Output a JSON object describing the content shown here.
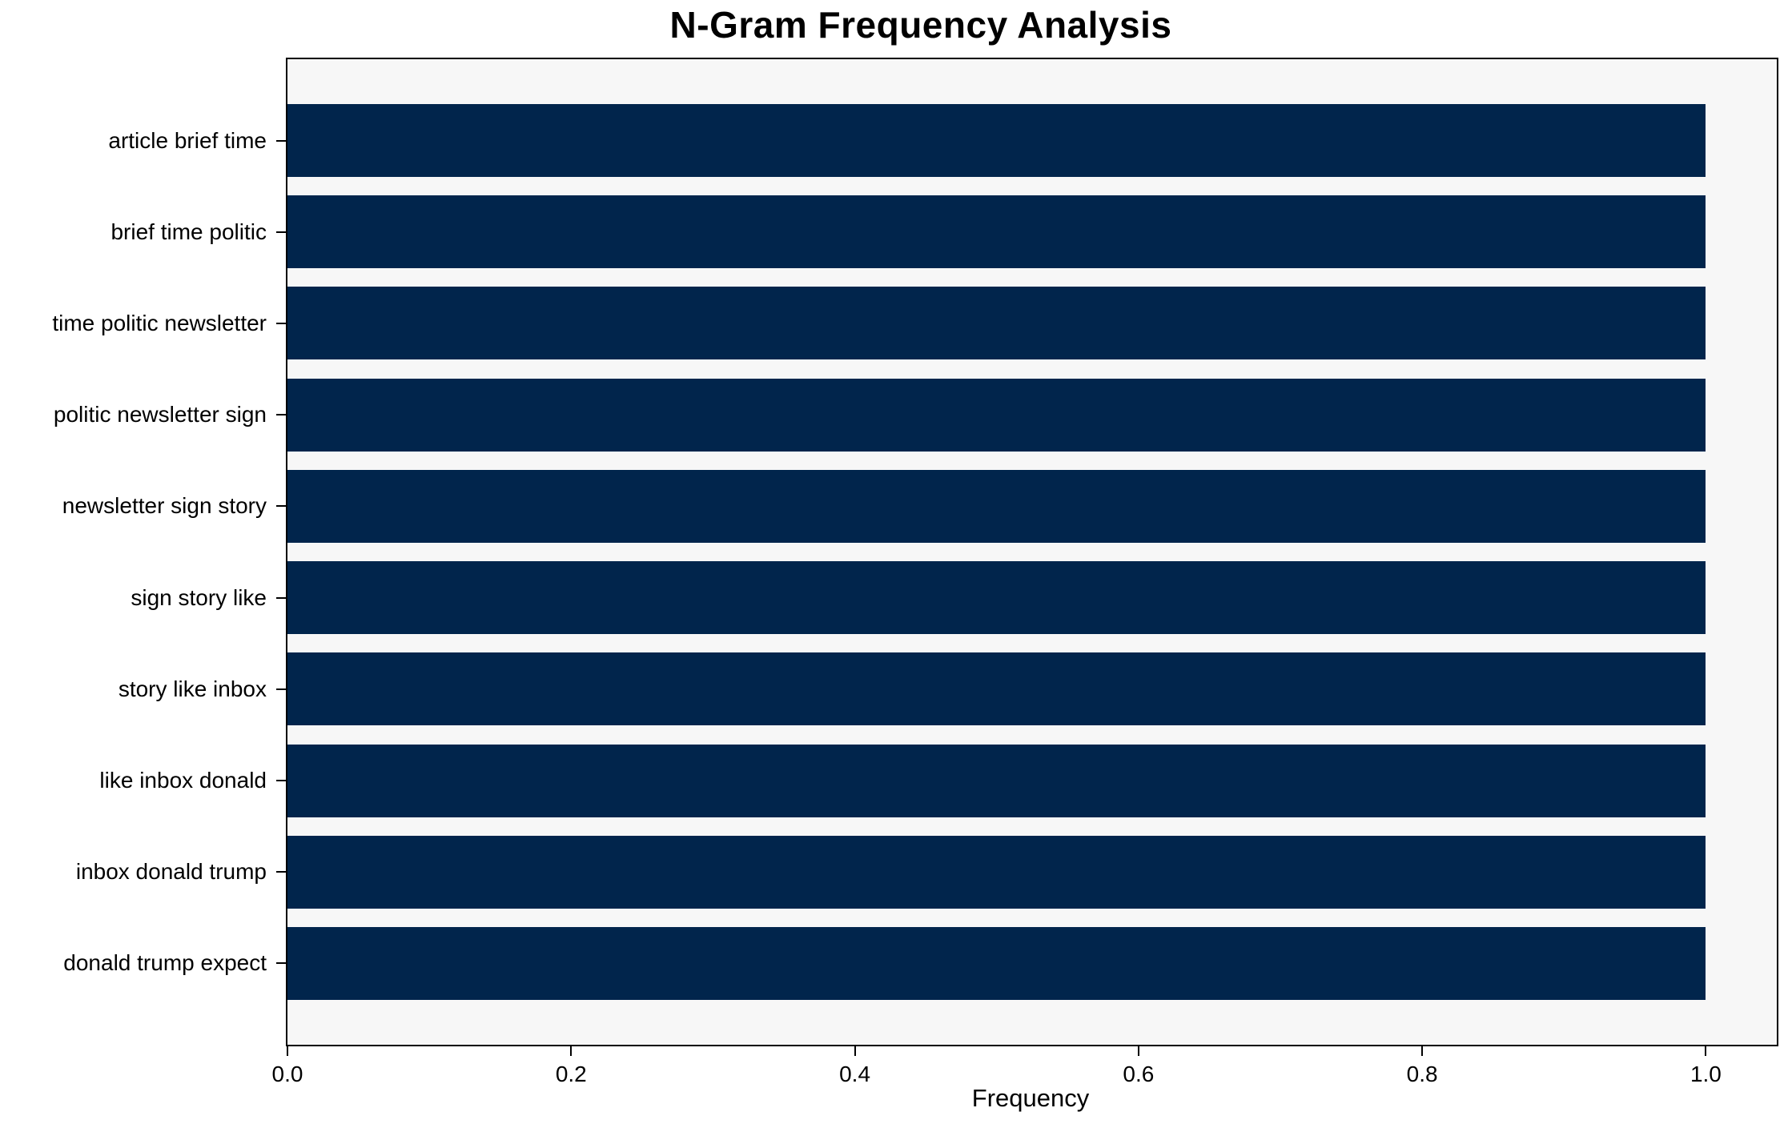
{
  "figure": {
    "background": "#ffffff",
    "plot_background": "#f7f7f7",
    "spine_color": "#000000",
    "text_color": "#000000"
  },
  "chart_data": {
    "type": "bar",
    "orientation": "horizontal",
    "title": "N-Gram Frequency Analysis",
    "xlabel": "Frequency",
    "ylabel": "",
    "categories": [
      "article brief time",
      "brief time politic",
      "time politic newsletter",
      "politic newsletter sign",
      "newsletter sign story",
      "sign story like",
      "story like inbox",
      "like inbox donald",
      "inbox donald trump",
      "donald trump expect"
    ],
    "values": [
      1.0,
      1.0,
      1.0,
      1.0,
      1.0,
      1.0,
      1.0,
      1.0,
      1.0,
      1.0
    ],
    "x_ticks": [
      0.0,
      0.2,
      0.4,
      0.6,
      0.8,
      1.0
    ],
    "x_tick_labels": [
      "0.0",
      "0.2",
      "0.4",
      "0.6",
      "0.8",
      "1.0"
    ],
    "xlim": [
      0.0,
      1.05
    ],
    "grid": false,
    "legend": "none",
    "bar_color": "#01254c",
    "plot_background": "#f7f7f7"
  }
}
